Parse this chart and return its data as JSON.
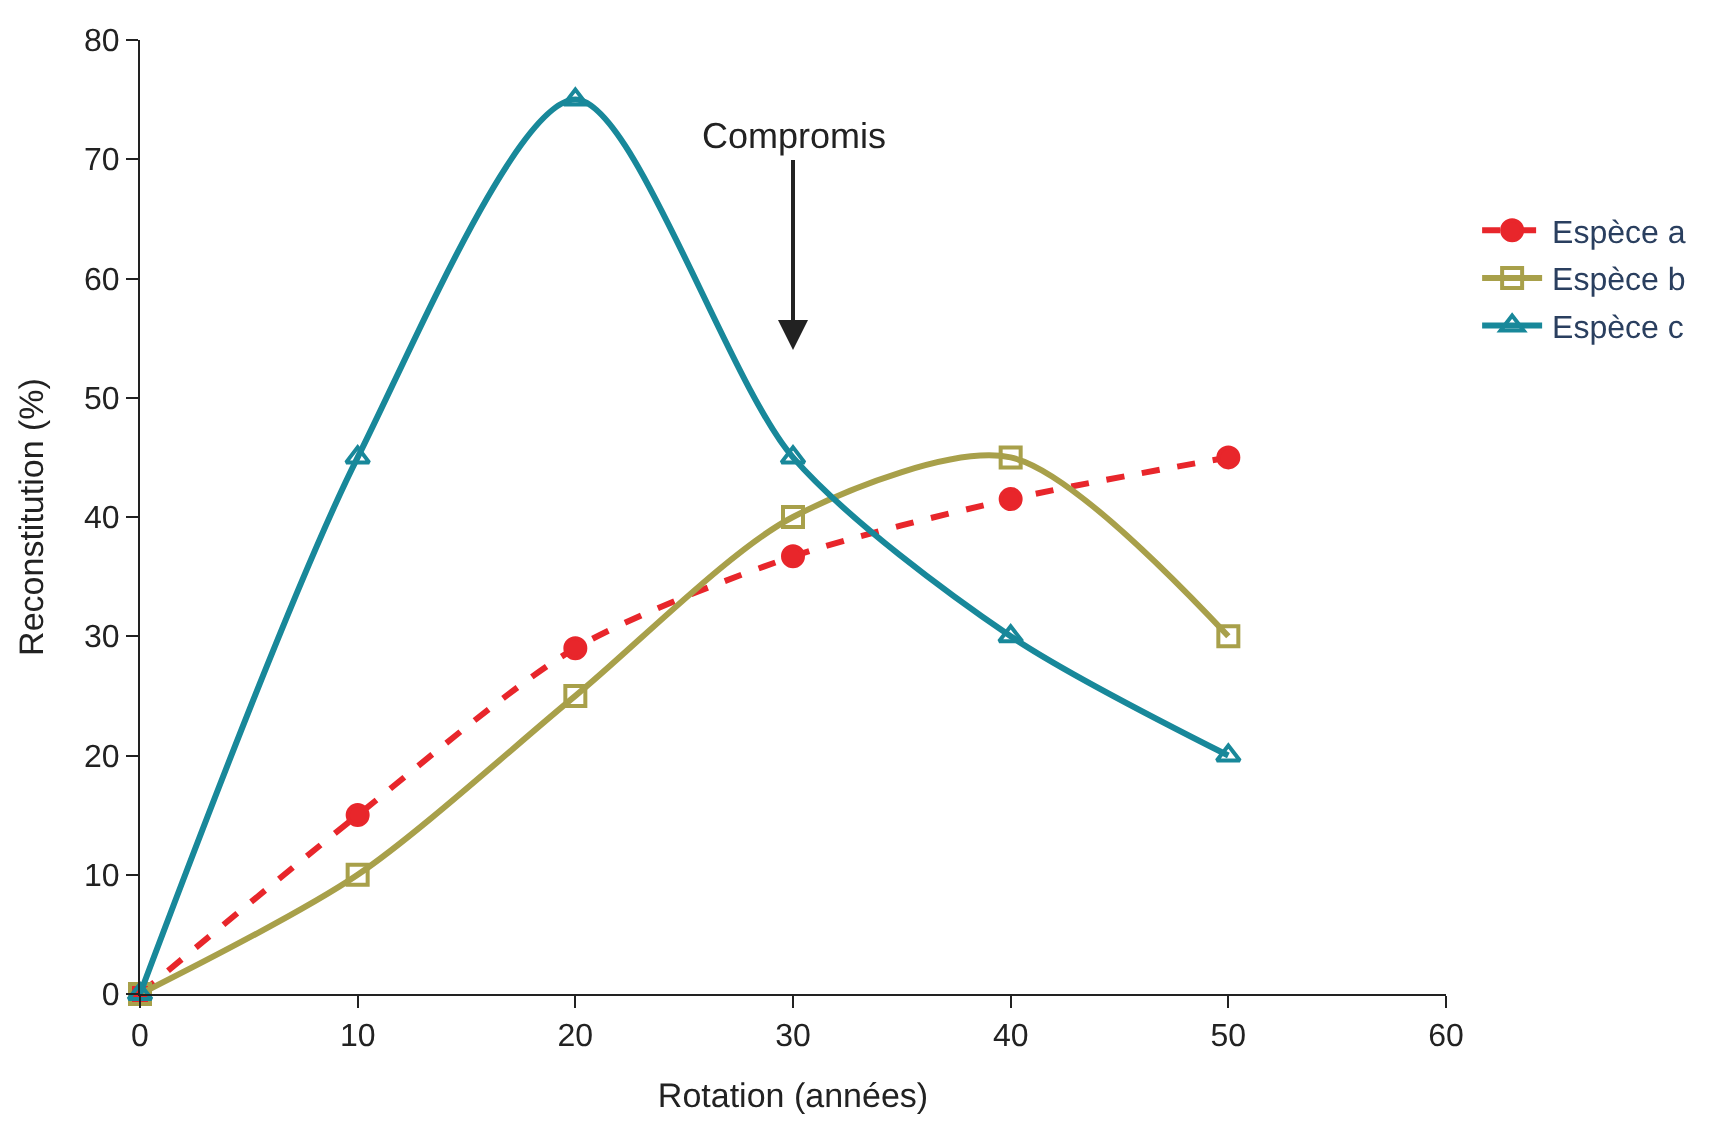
{
  "chart_data": {
    "type": "line",
    "xlabel": "Rotation (années)",
    "ylabel": "Reconstitution (%)",
    "x": [
      0,
      10,
      20,
      30,
      40,
      50
    ],
    "series": [
      {
        "name": "Espèce a",
        "color": "#e8262b",
        "values": [
          0,
          15,
          29,
          36.7,
          41.5,
          45
        ],
        "marker": "circle",
        "line_style": "dashed"
      },
      {
        "name": "Espèce b",
        "color": "#a8a04a",
        "values": [
          0,
          10,
          25,
          40,
          45,
          30
        ],
        "marker": "square",
        "line_style": "solid"
      },
      {
        "name": "Espèce c",
        "color": "#18889a",
        "values": [
          0,
          45,
          75,
          45,
          30,
          20
        ],
        "marker": "triangle",
        "line_style": "solid"
      }
    ],
    "xlim": [
      0,
      60
    ],
    "xticks": [
      0,
      10,
      20,
      30,
      40,
      50,
      60
    ],
    "ylim": [
      0,
      80
    ],
    "yticks": [
      0,
      10,
      20,
      30,
      40,
      50,
      60,
      70,
      80
    ],
    "annotations": [
      "Compromis"
    ],
    "legend": "right"
  }
}
